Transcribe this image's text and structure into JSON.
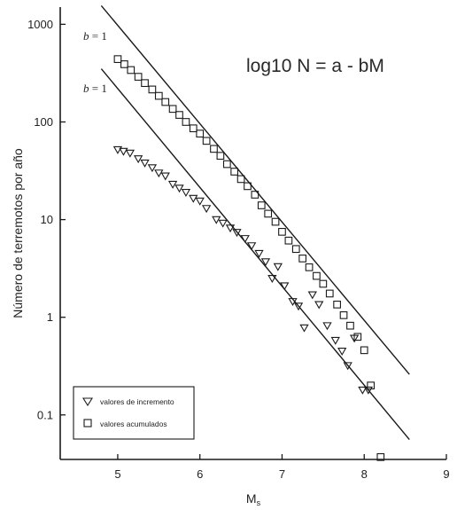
{
  "chart_data": {
    "type": "scatter",
    "title": "",
    "xlabel": "M",
    "xlabel_sub": "s",
    "ylabel": "Número de terremotos por año",
    "xlim": [
      4.3,
      9.0
    ],
    "ylim": [
      0.035,
      1500
    ],
    "y_scale": "log",
    "x_ticks": [
      "5",
      "6",
      "7",
      "8",
      "9"
    ],
    "x_tick_values": [
      5,
      6,
      7,
      8,
      9
    ],
    "y_ticks": [
      "1000",
      "100",
      "10",
      "1",
      "0.1"
    ],
    "y_tick_values": [
      1000,
      100,
      10,
      1,
      0.1
    ],
    "grid": false,
    "legend_position": "bottom-left",
    "annotation": "log10 N = a - bM",
    "fit_lines": [
      {
        "label_b": "b",
        "label_rest": " = 1",
        "x": [
          4.8,
          8.55
        ],
        "y": [
          1550,
          0.26
        ]
      },
      {
        "label_b": "b",
        "label_rest": " = 1",
        "x": [
          4.8,
          8.55
        ],
        "y": [
          350,
          0.056
        ]
      }
    ],
    "series": [
      {
        "name": "valores de incremento",
        "marker": "triangle-down",
        "x": [
          5.0,
          5.07,
          5.15,
          5.25,
          5.33,
          5.42,
          5.5,
          5.58,
          5.67,
          5.75,
          5.83,
          5.92,
          6.0,
          6.08,
          6.2,
          6.28,
          6.37,
          6.45,
          6.55,
          6.63,
          6.72,
          6.8,
          6.88,
          6.95,
          7.03,
          7.13,
          7.2,
          7.27,
          7.37,
          7.45,
          7.55,
          7.65,
          7.73,
          7.8,
          7.88,
          7.98,
          8.05
        ],
        "y": [
          52,
          50,
          48,
          42,
          38,
          34,
          30,
          28,
          23,
          21,
          19,
          16.5,
          15.5,
          13,
          10,
          9.2,
          8.2,
          7.4,
          6.4,
          5.4,
          4.5,
          3.7,
          2.5,
          3.3,
          2.1,
          1.45,
          1.3,
          0.78,
          1.7,
          1.35,
          0.82,
          0.58,
          0.45,
          0.32,
          0.61,
          0.18,
          0.18
        ]
      },
      {
        "name": "valores acumulados",
        "marker": "square",
        "x": [
          5.0,
          5.08,
          5.16,
          5.25,
          5.33,
          5.42,
          5.5,
          5.58,
          5.67,
          5.75,
          5.83,
          5.92,
          6.0,
          6.08,
          6.17,
          6.25,
          6.33,
          6.42,
          6.5,
          6.58,
          6.67,
          6.75,
          6.83,
          6.92,
          7.0,
          7.08,
          7.17,
          7.25,
          7.33,
          7.42,
          7.5,
          7.58,
          7.67,
          7.75,
          7.83,
          7.92,
          8.0,
          8.08,
          8.2
        ],
        "y": [
          440,
          390,
          340,
          290,
          250,
          215,
          185,
          160,
          136,
          118,
          100,
          86,
          76,
          64,
          53,
          45,
          37,
          31,
          26,
          22,
          18,
          14,
          11.5,
          9.5,
          7.5,
          6.1,
          5.0,
          4.0,
          3.25,
          2.65,
          2.2,
          1.75,
          1.35,
          1.05,
          0.82,
          0.63,
          0.46,
          0.2,
          0.037
        ]
      }
    ]
  }
}
